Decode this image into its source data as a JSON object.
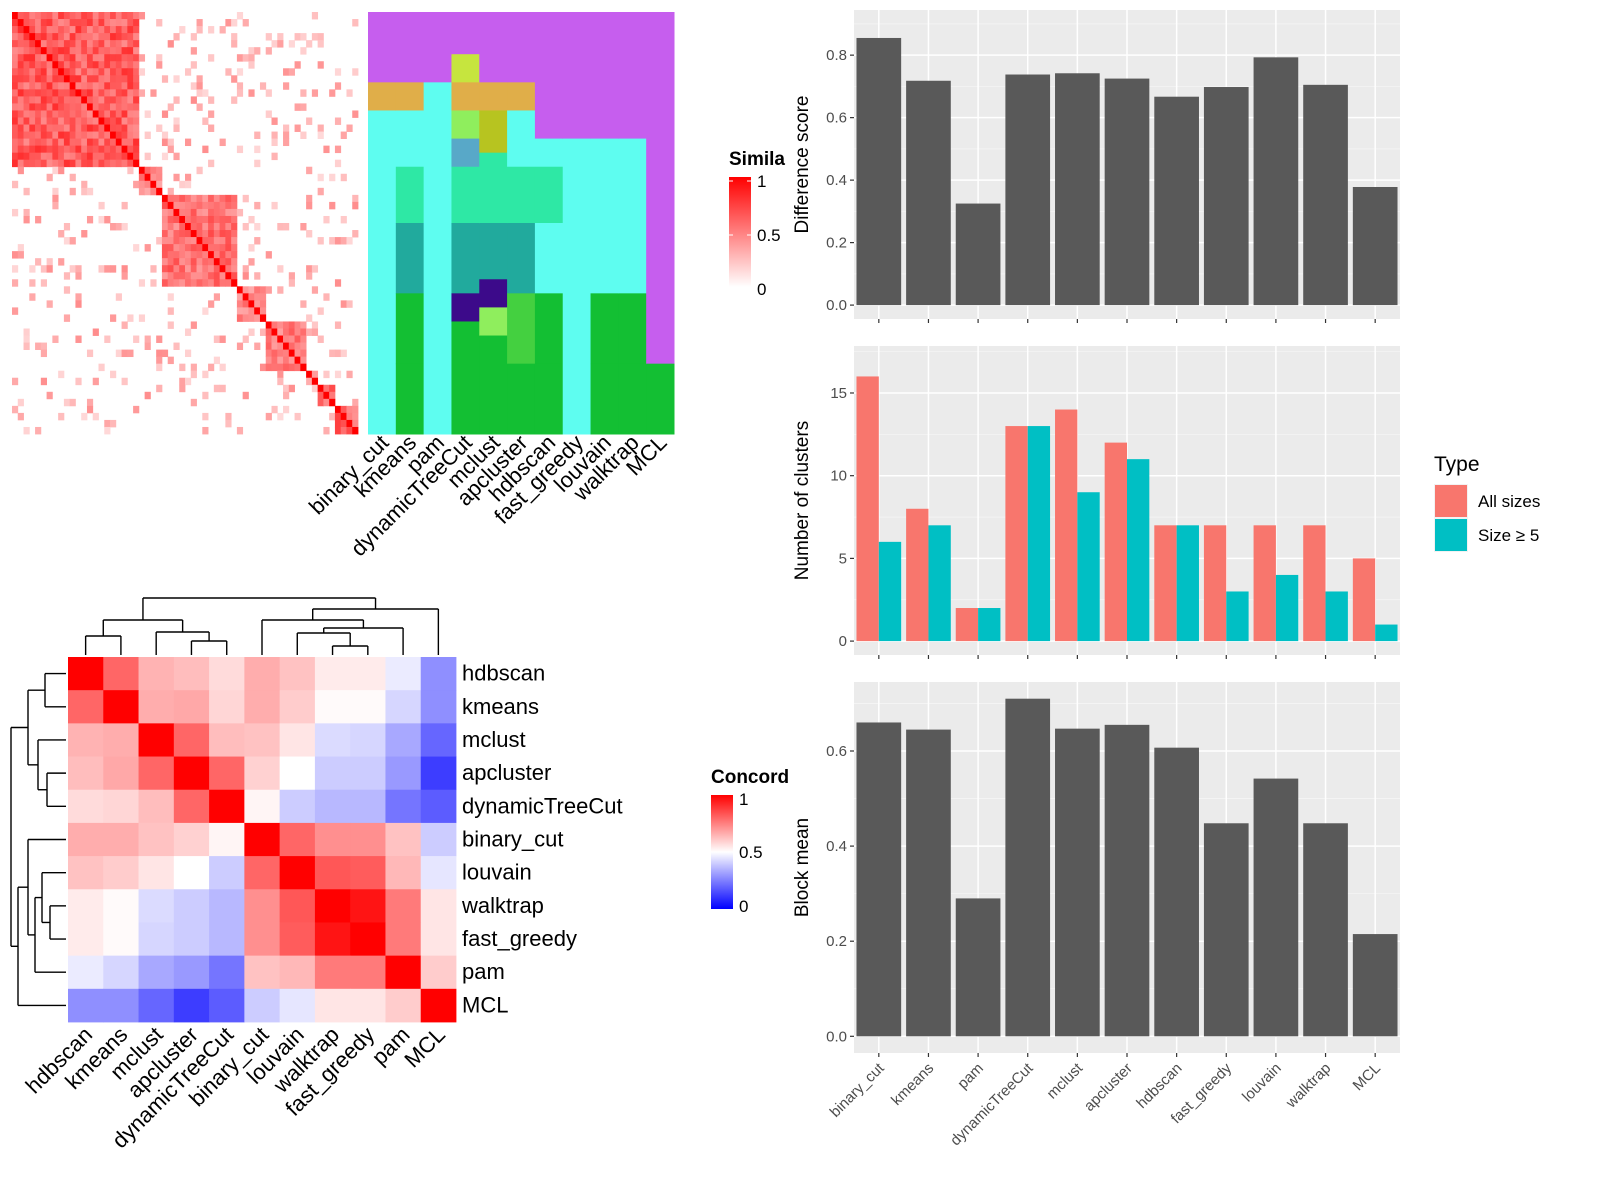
{
  "colors": {
    "panel_bg": "#ebebeb",
    "grid_major": "#ffffff",
    "grid_minor": "#f5f5f5",
    "bar_dark": "#595959",
    "all_sizes": "#F8766D",
    "size_ge5": "#00BFC4",
    "hm_low_blue": "#0000FF",
    "hm_mid_white": "#FFFFFF",
    "hm_high_red": "#FF0000",
    "cluster_palette": [
      "#C65EEE",
      "#5EFDF0",
      "#E0AE49",
      "#2EE8A5",
      "#21AA9D",
      "#13BF33",
      "#44D040",
      "#3C0A8A",
      "#D04242",
      "#C6E53E",
      "#8FEE5D",
      "#58A8C8",
      "#B7C420"
    ]
  },
  "chart_data": [
    {
      "id": "similarity_heatmap",
      "type": "heatmap",
      "title": "",
      "description_note": "",
      "legend": {
        "title": "Simila",
        "ticks": [
          "1",
          "0.5",
          "0"
        ],
        "range": [
          0,
          1
        ]
      },
      "blocks": [
        {
          "start": 0,
          "end": 22,
          "strength": 0.75
        },
        {
          "start": 22,
          "end": 26,
          "strength": 0.55
        },
        {
          "start": 26,
          "end": 39,
          "strength": 0.65
        },
        {
          "start": 39,
          "end": 44,
          "strength": 0.55
        },
        {
          "start": 44,
          "end": 51,
          "strength": 0.6
        },
        {
          "start": 51,
          "end": 53,
          "strength": 0.5
        },
        {
          "start": 53,
          "end": 56,
          "strength": 0.7
        },
        {
          "start": 56,
          "end": 60,
          "strength": 0.7
        }
      ],
      "n_items": 60
    },
    {
      "id": "cluster_assignment_heatmap",
      "type": "heatmap",
      "columns": [
        "binary_cut",
        "kmeans",
        "pam",
        "dynamicTreeCut",
        "mclust",
        "apcluster",
        "hdbscan",
        "fast_greedy",
        "louvain",
        "walktrap",
        "MCL"
      ],
      "n_rows": 60,
      "segments": [
        [
          [
            0,
            10,
            0
          ],
          [
            10,
            14,
            2
          ],
          [
            14,
            60,
            1
          ]
        ],
        [
          [
            0,
            10,
            0
          ],
          [
            10,
            14,
            2
          ],
          [
            14,
            22,
            1
          ],
          [
            22,
            30,
            3
          ],
          [
            30,
            40,
            4
          ],
          [
            40,
            50,
            5
          ],
          [
            50,
            60,
            5
          ]
        ],
        [
          [
            0,
            10,
            0
          ],
          [
            10,
            60,
            1
          ]
        ],
        [
          [
            0,
            6,
            0
          ],
          [
            6,
            10,
            9
          ],
          [
            10,
            14,
            2
          ],
          [
            14,
            18,
            10
          ],
          [
            18,
            22,
            11
          ],
          [
            22,
            30,
            3
          ],
          [
            30,
            40,
            4
          ],
          [
            40,
            44,
            7
          ],
          [
            44,
            60,
            5
          ]
        ],
        [
          [
            0,
            10,
            0
          ],
          [
            10,
            14,
            2
          ],
          [
            14,
            20,
            12
          ],
          [
            20,
            30,
            3
          ],
          [
            30,
            38,
            4
          ],
          [
            38,
            42,
            7
          ],
          [
            42,
            46,
            10
          ],
          [
            46,
            60,
            5
          ]
        ],
        [
          [
            0,
            10,
            0
          ],
          [
            10,
            14,
            2
          ],
          [
            14,
            22,
            1
          ],
          [
            22,
            30,
            3
          ],
          [
            30,
            40,
            4
          ],
          [
            40,
            50,
            6
          ],
          [
            50,
            60,
            5
          ]
        ],
        [
          [
            0,
            18,
            0
          ],
          [
            18,
            22,
            1
          ],
          [
            22,
            30,
            3
          ],
          [
            30,
            40,
            1
          ],
          [
            40,
            50,
            5
          ],
          [
            50,
            60,
            5
          ]
        ],
        [
          [
            0,
            18,
            0
          ],
          [
            18,
            60,
            1
          ]
        ],
        [
          [
            0,
            18,
            0
          ],
          [
            18,
            40,
            1
          ],
          [
            40,
            50,
            5
          ],
          [
            50,
            60,
            5
          ]
        ],
        [
          [
            0,
            18,
            0
          ],
          [
            18,
            40,
            1
          ],
          [
            40,
            50,
            5
          ],
          [
            50,
            60,
            5
          ]
        ],
        [
          [
            0,
            50,
            0
          ],
          [
            50,
            60,
            5
          ]
        ]
      ]
    },
    {
      "id": "concordance_heatmap",
      "type": "heatmap",
      "legend": {
        "title": "Concord",
        "ticks": [
          "1",
          "0.5",
          "0"
        ],
        "range": [
          0,
          1
        ]
      },
      "rows": [
        "hdbscan",
        "kmeans",
        "mclust",
        "apcluster",
        "dynamicTreeCut",
        "binary_cut",
        "louvain",
        "walktrap",
        "fast_greedy",
        "pam",
        "MCL"
      ],
      "columns": [
        "hdbscan",
        "kmeans",
        "mclust",
        "apcluster",
        "dynamicTreeCut",
        "binary_cut",
        "louvain",
        "walktrap",
        "fast_greedy",
        "pam",
        "MCL"
      ],
      "values": [
        [
          1.0,
          0.8,
          0.65,
          0.63,
          0.57,
          0.66,
          0.62,
          0.54,
          0.54,
          0.46,
          0.28
        ],
        [
          0.8,
          1.0,
          0.66,
          0.67,
          0.58,
          0.66,
          0.6,
          0.51,
          0.51,
          0.42,
          0.28
        ],
        [
          0.65,
          0.66,
          1.0,
          0.8,
          0.63,
          0.62,
          0.55,
          0.43,
          0.42,
          0.33,
          0.2
        ],
        [
          0.63,
          0.67,
          0.8,
          1.0,
          0.8,
          0.59,
          0.5,
          0.4,
          0.4,
          0.3,
          0.12
        ],
        [
          0.57,
          0.58,
          0.63,
          0.8,
          1.0,
          0.52,
          0.4,
          0.36,
          0.36,
          0.23,
          0.18
        ],
        [
          0.66,
          0.66,
          0.62,
          0.59,
          0.52,
          1.0,
          0.8,
          0.72,
          0.72,
          0.62,
          0.4
        ],
        [
          0.62,
          0.6,
          0.55,
          0.5,
          0.4,
          0.8,
          1.0,
          0.83,
          0.82,
          0.64,
          0.45
        ],
        [
          0.54,
          0.51,
          0.43,
          0.4,
          0.36,
          0.72,
          0.83,
          1.0,
          0.96,
          0.76,
          0.55
        ],
        [
          0.54,
          0.51,
          0.42,
          0.4,
          0.36,
          0.72,
          0.82,
          0.96,
          1.0,
          0.76,
          0.55
        ],
        [
          0.46,
          0.42,
          0.33,
          0.3,
          0.23,
          0.62,
          0.64,
          0.76,
          0.76,
          1.0,
          0.6
        ],
        [
          0.28,
          0.28,
          0.2,
          0.12,
          0.18,
          0.4,
          0.45,
          0.55,
          0.55,
          0.6,
          1.0
        ]
      ]
    },
    {
      "id": "difference_score",
      "type": "bar",
      "categories": [
        "binary_cut",
        "kmeans",
        "pam",
        "dynamicTreeCut",
        "mclust",
        "apcluster",
        "hdbscan",
        "fast_greedy",
        "louvain",
        "walktrap",
        "MCL"
      ],
      "values": [
        0.855,
        0.718,
        0.325,
        0.738,
        0.742,
        0.725,
        0.667,
        0.698,
        0.793,
        0.705,
        0.378
      ],
      "ylabel": "Difference score",
      "ylim": [
        0,
        0.9
      ],
      "yticks": [
        "0.0",
        "0.2",
        "0.4",
        "0.6",
        "0.8"
      ],
      "ytick_values": [
        0,
        0.2,
        0.4,
        0.6,
        0.8
      ]
    },
    {
      "id": "number_of_clusters",
      "type": "bar",
      "categories": [
        "binary_cut",
        "kmeans",
        "pam",
        "dynamicTreeCut",
        "mclust",
        "apcluster",
        "hdbscan",
        "fast_greedy",
        "louvain",
        "walktrap",
        "MCL"
      ],
      "series": [
        {
          "name": "All sizes",
          "values": [
            16,
            8,
            2,
            13,
            14,
            12,
            7,
            7,
            7,
            7,
            5
          ]
        },
        {
          "name": "Size ≥ 5",
          "values": [
            6,
            7,
            2,
            13,
            9,
            11,
            7,
            3,
            4,
            3,
            1
          ]
        }
      ],
      "ylabel": "Number of clusters",
      "ylim": [
        0,
        17
      ],
      "yticks": [
        "0",
        "5",
        "10",
        "15"
      ],
      "ytick_values": [
        0,
        5,
        10,
        15
      ],
      "legend": {
        "title": "Type",
        "placement": "right"
      }
    },
    {
      "id": "block_mean",
      "type": "bar",
      "categories": [
        "binary_cut",
        "kmeans",
        "pam",
        "dynamicTreeCut",
        "mclust",
        "apcluster",
        "hdbscan",
        "fast_greedy",
        "louvain",
        "walktrap",
        "MCL"
      ],
      "values": [
        0.66,
        0.645,
        0.29,
        0.71,
        0.647,
        0.655,
        0.607,
        0.448,
        0.542,
        0.448,
        0.215
      ],
      "ylabel": "Block mean",
      "ylim": [
        0,
        0.71
      ],
      "yticks": [
        "0.0",
        "0.2",
        "0.4",
        "0.6"
      ],
      "ytick_values": [
        0,
        0.2,
        0.4,
        0.6
      ]
    }
  ]
}
